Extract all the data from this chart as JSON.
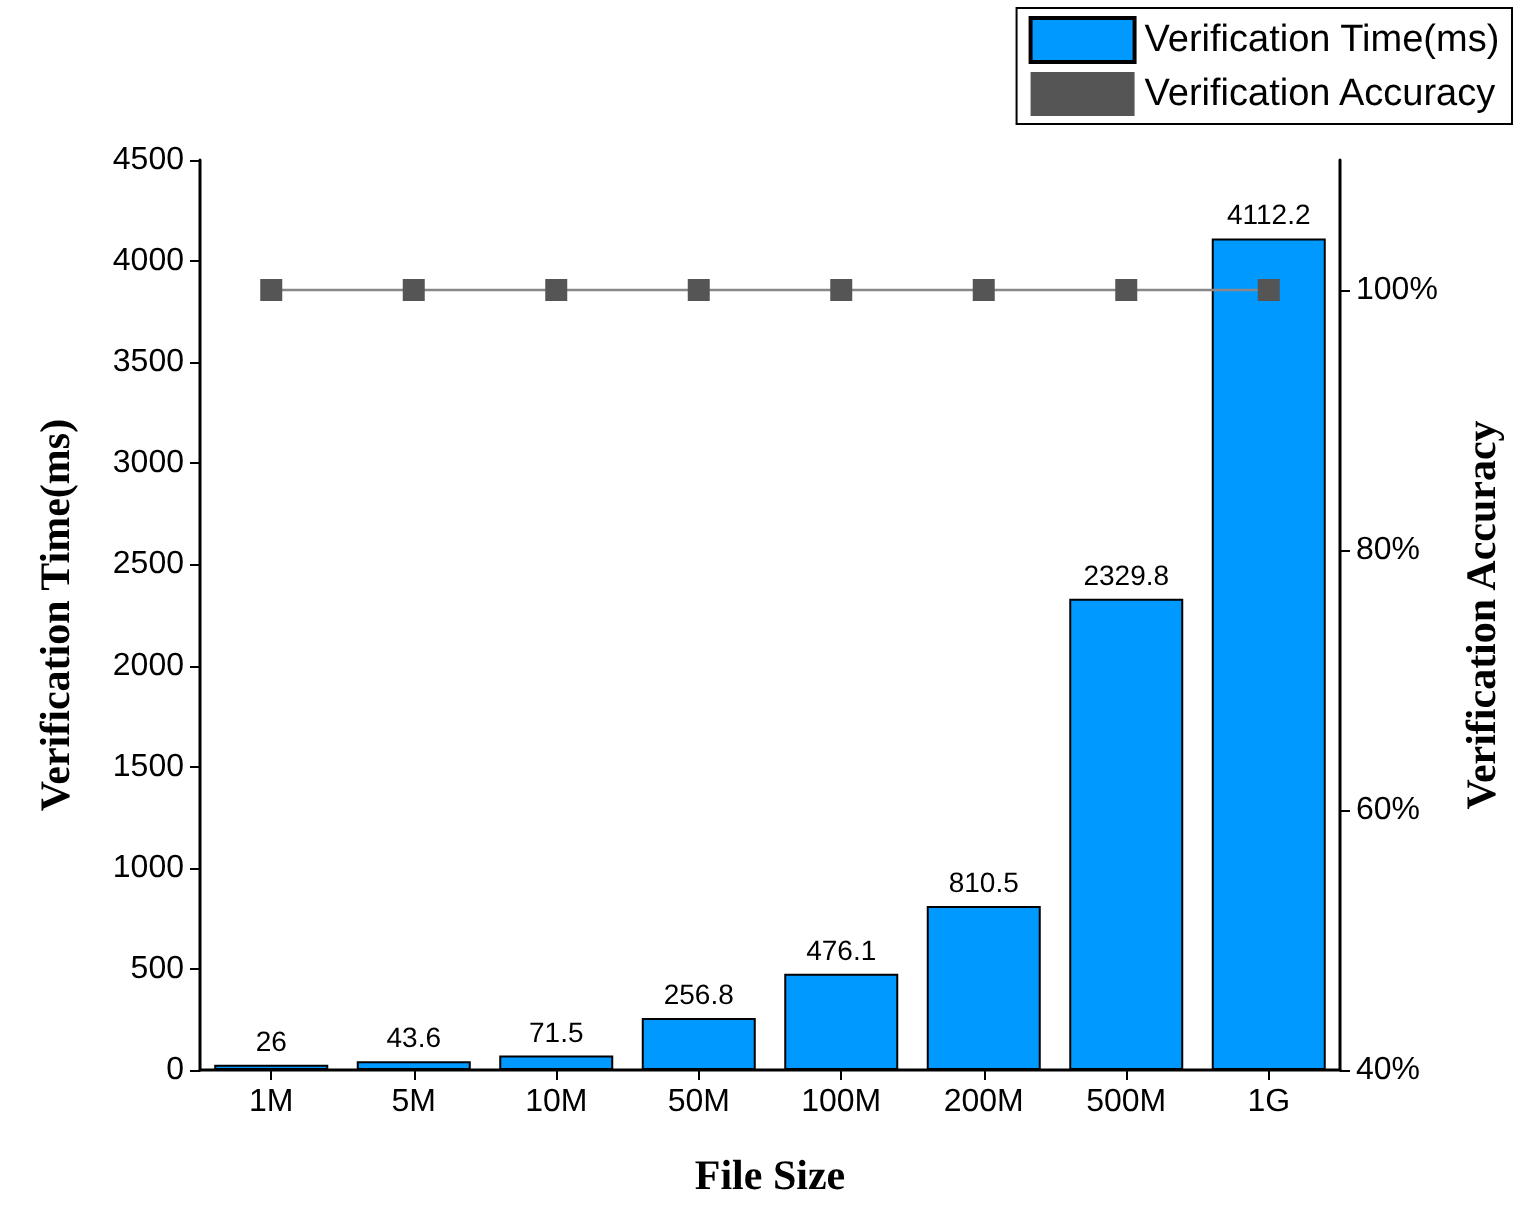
{
  "chart_data": {
    "type": "bar",
    "xlabel": "File Size",
    "ylabel": "Verification Time(ms)",
    "y2label": "Verification Accuracy",
    "categories": [
      "1M",
      "5M",
      "10M",
      "50M",
      "100M",
      "200M",
      "500M",
      "1G"
    ],
    "series": [
      {
        "name": "Verification Time(ms)",
        "color": "#0099ff",
        "values": [
          26,
          43.6,
          71.5,
          256.8,
          476.1,
          810.5,
          2329.8,
          4112.2
        ],
        "value_labels": [
          "26",
          "43.6",
          "71.5",
          "256.8",
          "476.1",
          "810.5",
          "2329.8",
          "4112.2"
        ]
      },
      {
        "name": "Verification Accuracy",
        "type": "line",
        "axis": "y2",
        "color": "#555555",
        "marker": "square",
        "line_style": "solid",
        "values": [
          100,
          100,
          100,
          100,
          100,
          100,
          100,
          100
        ]
      }
    ],
    "ylim": [
      0,
      4500
    ],
    "yticks": [
      0,
      500,
      1000,
      1500,
      2000,
      2500,
      3000,
      3500,
      4000,
      4500
    ],
    "y2lim": [
      40,
      110
    ],
    "y2ticks": [
      {
        "value": 40,
        "label": "40%"
      },
      {
        "value": 60,
        "label": "60%"
      },
      {
        "value": 80,
        "label": "80%"
      },
      {
        "value": 100,
        "label": "100%"
      }
    ],
    "legend": "top right",
    "grid": false
  }
}
